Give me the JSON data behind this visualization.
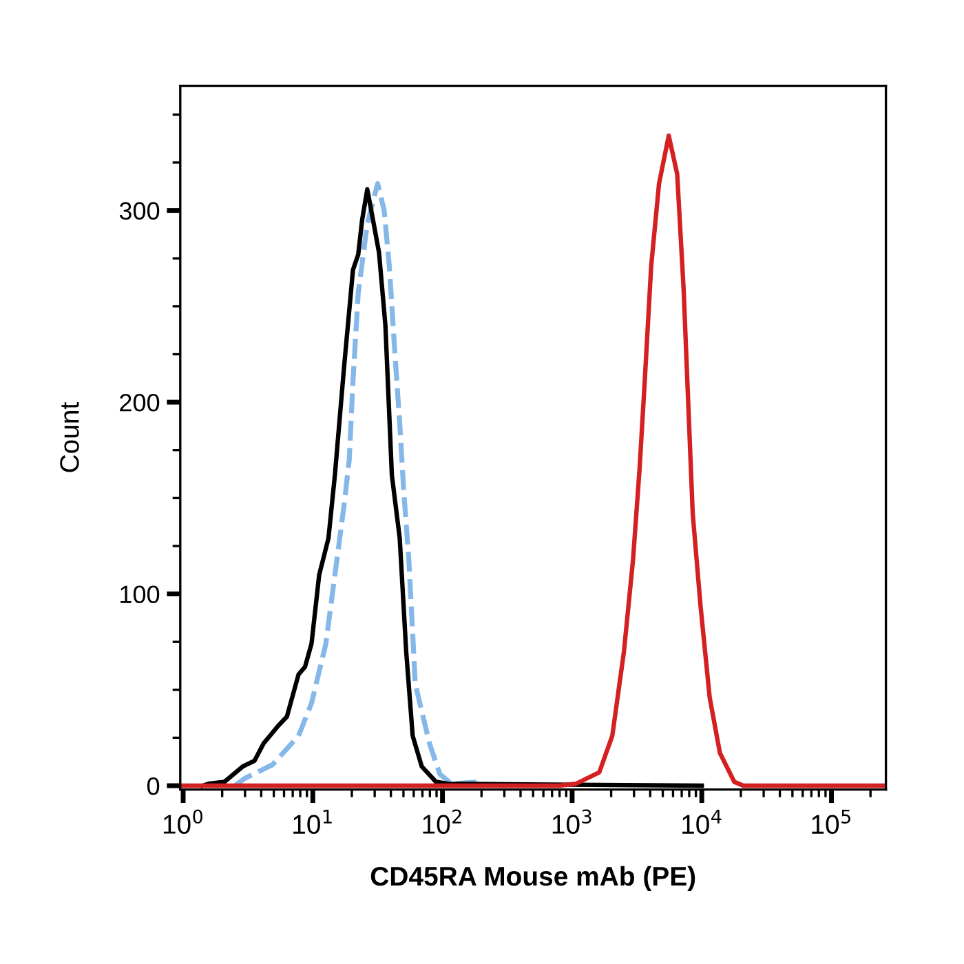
{
  "chart_data": {
    "type": "line",
    "xlabel": "CD45RA Mouse mAb (PE)",
    "ylabel": "Count",
    "log": "x",
    "grid": false,
    "marker": "none",
    "xlim": [
      0.95,
      263000
    ],
    "ylim": [
      -2,
      365
    ],
    "xticks": [
      {
        "value": 1,
        "label": "10$^{0}$"
      },
      {
        "value": 10,
        "label": "10$^{1}$"
      },
      {
        "value": 100,
        "label": "10$^{2}$"
      },
      {
        "value": 1000,
        "label": "10$^{3}$"
      },
      {
        "value": 10000,
        "label": "10$^{4}$"
      },
      {
        "value": 100000,
        "label": "10$^{5}$"
      }
    ],
    "yticks": [
      0,
      {
        "value": 25,
        "label": null
      },
      {
        "value": 50,
        "label": null
      },
      {
        "value": 75,
        "label": null
      },
      100,
      {
        "value": 125,
        "label": null
      },
      {
        "value": 150,
        "label": null
      },
      {
        "value": 175,
        "label": null
      },
      200,
      {
        "value": 225,
        "label": null
      },
      {
        "value": 250,
        "label": null
      },
      {
        "value": 275,
        "label": null
      },
      300,
      {
        "value": 325,
        "label": null
      },
      {
        "value": 350,
        "label": null
      }
    ],
    "series": [
      {
        "color": "#85b8e8",
        "line_style": "dashed",
        "x": [
          2.51,
          3.02,
          4.9,
          7.76,
          9.77,
          12.6,
          14.8,
          17.4,
          19.1,
          20.4,
          22.4,
          26.3,
          31.6,
          35.5,
          38.9,
          42.7,
          46.8,
          50.1,
          55.0,
          61.7,
          79.4,
          95.5,
          117,
          200
        ],
        "values": [
          0,
          4,
          11,
          26,
          43,
          74,
          110,
          146,
          170,
          211,
          257,
          293,
          314,
          300,
          271,
          228,
          189,
          155,
          118,
          53,
          22,
          6,
          1,
          2
        ]
      },
      {
        "color": "#000000",
        "line_style": "solid",
        "x": [
          1.41,
          1.57,
          2.08,
          2.88,
          3.55,
          4.17,
          5.37,
          6.31,
          7.76,
          8.71,
          9.77,
          11.2,
          13.2,
          14.8,
          17.4,
          20.4,
          22.4,
          24.0,
          26.3,
          29.5,
          32.4,
          36.3,
          40.7,
          46.8,
          52.5,
          58.9,
          69.2,
          89.1,
          110,
          10000
        ],
        "values": [
          0,
          1,
          2,
          10,
          13,
          22,
          31,
          36,
          58,
          62,
          74,
          110,
          129,
          162,
          218,
          269,
          277,
          295,
          311,
          293,
          278,
          240,
          162,
          129,
          70,
          26,
          10,
          2,
          1,
          0
        ]
      },
      {
        "color": "#d42020",
        "line_style": "solid",
        "x": [
          0.95,
          794,
          1070,
          1620,
          2040,
          2510,
          2950,
          3310,
          3630,
          4070,
          4680,
          5560,
          6460,
          7240,
          8130,
          8510,
          9770,
          11500,
          13800,
          17800,
          20900,
          263000
        ],
        "values": [
          0,
          0,
          1,
          7,
          26,
          70,
          118,
          165,
          211,
          271,
          314,
          339,
          319,
          259,
          175,
          142,
          94,
          46,
          17,
          2,
          0,
          0
        ]
      }
    ]
  }
}
